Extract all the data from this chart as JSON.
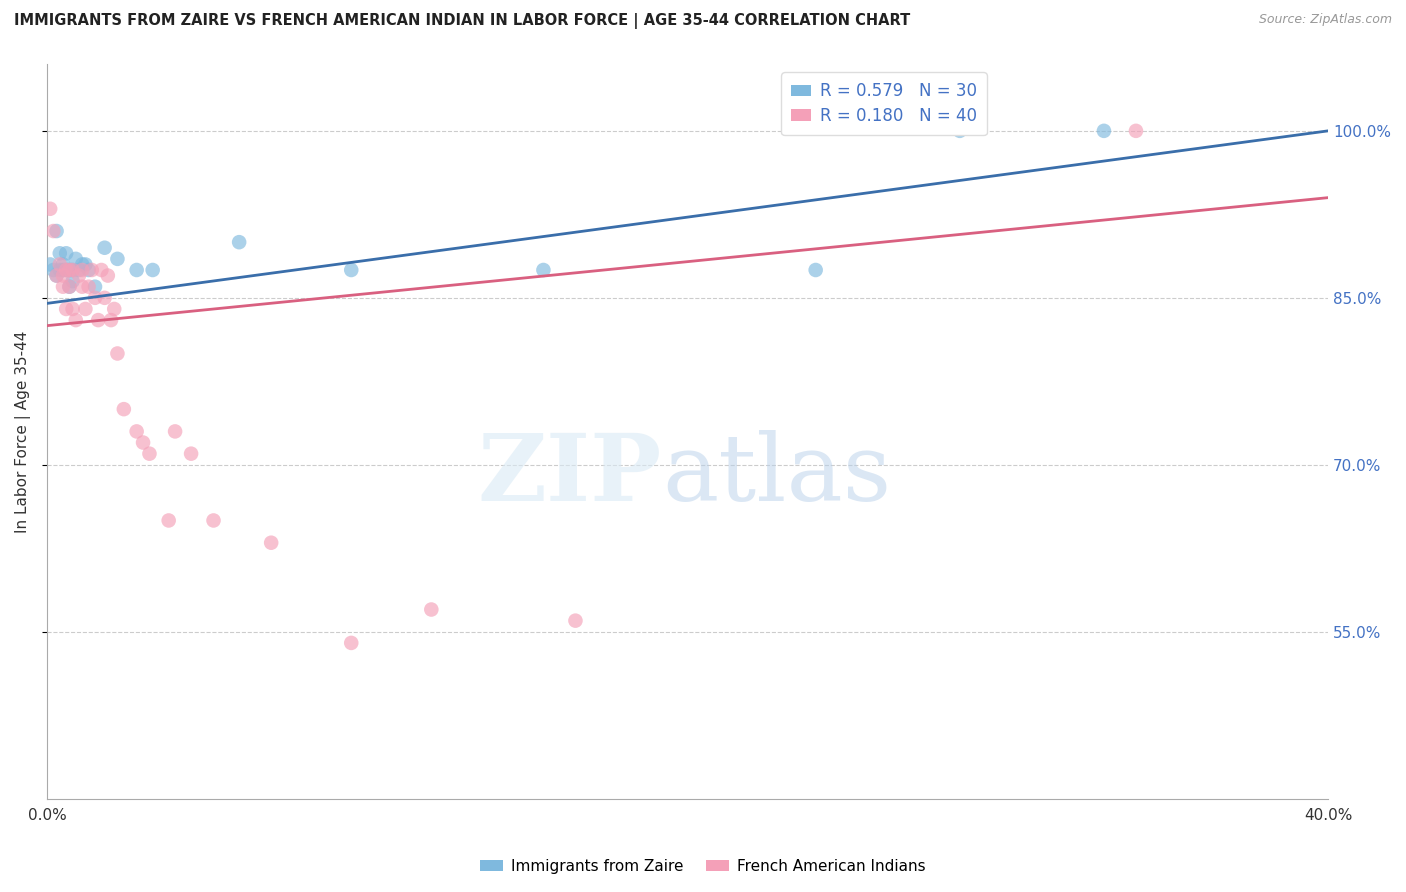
{
  "title": "IMMIGRANTS FROM ZAIRE VS FRENCH AMERICAN INDIAN IN LABOR FORCE | AGE 35-44 CORRELATION CHART",
  "source": "Source: ZipAtlas.com",
  "ylabel": "In Labor Force | Age 35-44",
  "xlim": [
    0.0,
    0.4
  ],
  "ylim": [
    0.4,
    1.06
  ],
  "yticks": [
    0.55,
    0.7,
    0.85,
    1.0
  ],
  "ytick_labels": [
    "55.0%",
    "70.0%",
    "85.0%",
    "100.0%"
  ],
  "xticks": [
    0.0,
    0.05,
    0.1,
    0.15,
    0.2,
    0.25,
    0.3,
    0.35,
    0.4
  ],
  "xtick_labels": [
    "0.0%",
    "",
    "",
    "",
    "",
    "",
    "",
    "",
    "40.0%"
  ],
  "blue_R": 0.579,
  "blue_N": 30,
  "pink_R": 0.18,
  "pink_N": 40,
  "blue_color": "#7fb9de",
  "pink_color": "#f4a0b8",
  "blue_line_color": "#3a6eaa",
  "pink_line_color": "#d96080",
  "legend_label_blue": "Immigrants from Zaire",
  "legend_label_pink": "French American Indians",
  "blue_scatter_x": [
    0.001,
    0.002,
    0.003,
    0.003,
    0.004,
    0.004,
    0.005,
    0.005,
    0.006,
    0.006,
    0.007,
    0.007,
    0.008,
    0.008,
    0.009,
    0.01,
    0.011,
    0.012,
    0.013,
    0.015,
    0.018,
    0.022,
    0.028,
    0.033,
    0.06,
    0.095,
    0.155,
    0.24,
    0.285,
    0.33
  ],
  "blue_scatter_y": [
    0.88,
    0.875,
    0.87,
    0.91,
    0.875,
    0.89,
    0.875,
    0.88,
    0.875,
    0.89,
    0.86,
    0.875,
    0.865,
    0.875,
    0.885,
    0.875,
    0.88,
    0.88,
    0.875,
    0.86,
    0.895,
    0.885,
    0.875,
    0.875,
    0.9,
    0.875,
    0.875,
    0.875,
    1.0,
    1.0
  ],
  "pink_scatter_x": [
    0.001,
    0.002,
    0.003,
    0.004,
    0.005,
    0.005,
    0.006,
    0.006,
    0.007,
    0.007,
    0.008,
    0.008,
    0.009,
    0.01,
    0.011,
    0.011,
    0.012,
    0.013,
    0.014,
    0.015,
    0.016,
    0.017,
    0.018,
    0.019,
    0.02,
    0.021,
    0.022,
    0.024,
    0.028,
    0.03,
    0.032,
    0.038,
    0.04,
    0.045,
    0.052,
    0.07,
    0.095,
    0.12,
    0.165,
    0.34
  ],
  "pink_scatter_y": [
    0.93,
    0.91,
    0.87,
    0.88,
    0.87,
    0.86,
    0.84,
    0.875,
    0.86,
    0.875,
    0.875,
    0.84,
    0.83,
    0.87,
    0.86,
    0.875,
    0.84,
    0.86,
    0.875,
    0.85,
    0.83,
    0.875,
    0.85,
    0.87,
    0.83,
    0.84,
    0.8,
    0.75,
    0.73,
    0.72,
    0.71,
    0.65,
    0.73,
    0.71,
    0.65,
    0.63,
    0.54,
    0.57,
    0.56,
    1.0
  ],
  "blue_line_x0": 0.0,
  "blue_line_x1": 0.4,
  "blue_line_y0": 0.845,
  "blue_line_y1": 1.0,
  "pink_line_x0": 0.0,
  "pink_line_x1": 0.4,
  "pink_line_y0": 0.825,
  "pink_line_y1": 0.94
}
